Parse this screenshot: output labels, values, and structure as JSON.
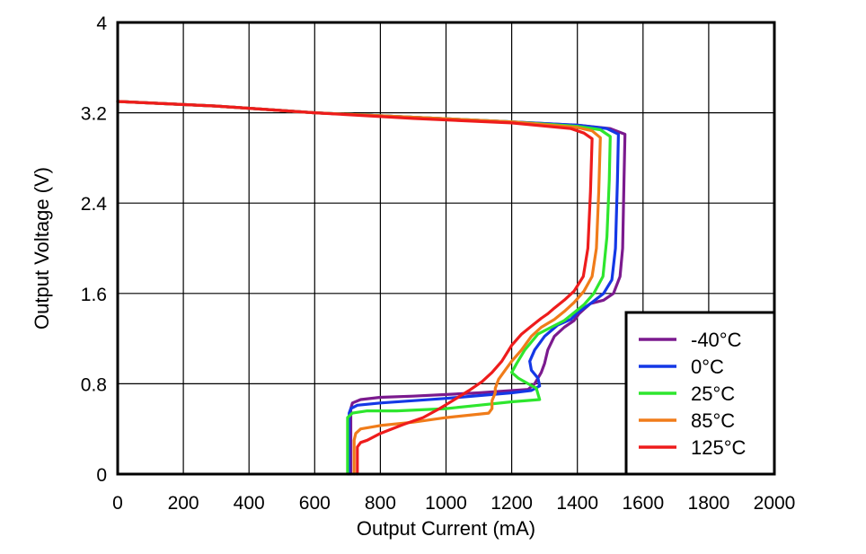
{
  "chart_data": {
    "type": "line",
    "title": "",
    "xlabel": "Output Current (mA)",
    "ylabel": "Output Voltage (V)",
    "xlim": [
      0,
      2000
    ],
    "ylim": [
      0,
      4
    ],
    "xticks": [
      0,
      200,
      400,
      600,
      800,
      1000,
      1200,
      1400,
      1600,
      1800,
      2000
    ],
    "xtick_labels": [
      "0",
      "200",
      "400",
      "600",
      "800",
      "1000",
      "1200",
      "1400",
      "1600",
      "1800",
      "2000"
    ],
    "yticks": [
      0,
      0.8,
      1.6,
      2.4,
      3.2,
      4
    ],
    "ytick_labels": [
      "0",
      "0.8",
      "1.6",
      "2.4",
      "3.2",
      "4"
    ],
    "grid": true,
    "legend_position": "bottom-right",
    "series": [
      {
        "name": "-40°C",
        "color": "#7b1a8e",
        "points": [
          [
            0,
            3.3
          ],
          [
            300,
            3.26
          ],
          [
            600,
            3.2
          ],
          [
            900,
            3.16
          ],
          [
            1200,
            3.12
          ],
          [
            1400,
            3.09
          ],
          [
            1500,
            3.06
          ],
          [
            1545,
            3.01
          ],
          [
            1542,
            2.6
          ],
          [
            1538,
            2.0
          ],
          [
            1530,
            1.75
          ],
          [
            1510,
            1.6
          ],
          [
            1480,
            1.54
          ],
          [
            1440,
            1.51
          ],
          [
            1420,
            1.46
          ],
          [
            1405,
            1.42
          ],
          [
            1390,
            1.36
          ],
          [
            1360,
            1.3
          ],
          [
            1330,
            1.22
          ],
          [
            1310,
            1.1
          ],
          [
            1300,
            0.98
          ],
          [
            1290,
            0.9
          ],
          [
            1270,
            0.8
          ],
          [
            1250,
            0.75
          ],
          [
            1100,
            0.72
          ],
          [
            900,
            0.69
          ],
          [
            800,
            0.68
          ],
          [
            740,
            0.66
          ],
          [
            715,
            0.63
          ],
          [
            710,
            0.58
          ],
          [
            710,
            0.4
          ],
          [
            710,
            0.2
          ],
          [
            710,
            0.0
          ]
        ]
      },
      {
        "name": "0°C",
        "color": "#1438e6",
        "points": [
          [
            0,
            3.3
          ],
          [
            300,
            3.26
          ],
          [
            600,
            3.2
          ],
          [
            900,
            3.16
          ],
          [
            1200,
            3.12
          ],
          [
            1400,
            3.09
          ],
          [
            1490,
            3.06
          ],
          [
            1525,
            3.01
          ],
          [
            1522,
            2.6
          ],
          [
            1516,
            2.0
          ],
          [
            1505,
            1.72
          ],
          [
            1480,
            1.6
          ],
          [
            1440,
            1.51
          ],
          [
            1400,
            1.43
          ],
          [
            1380,
            1.37
          ],
          [
            1340,
            1.32
          ],
          [
            1300,
            1.22
          ],
          [
            1270,
            1.1
          ],
          [
            1255,
            1.0
          ],
          [
            1260,
            0.92
          ],
          [
            1280,
            0.85
          ],
          [
            1285,
            0.78
          ],
          [
            1260,
            0.74
          ],
          [
            1200,
            0.72
          ],
          [
            1000,
            0.67
          ],
          [
            800,
            0.63
          ],
          [
            730,
            0.61
          ],
          [
            710,
            0.58
          ],
          [
            705,
            0.54
          ],
          [
            705,
            0.3
          ],
          [
            705,
            0.0
          ]
        ]
      },
      {
        "name": "25°C",
        "color": "#2ee62e",
        "points": [
          [
            0,
            3.3
          ],
          [
            300,
            3.26
          ],
          [
            600,
            3.2
          ],
          [
            900,
            3.16
          ],
          [
            1200,
            3.12
          ],
          [
            1400,
            3.08
          ],
          [
            1470,
            3.05
          ],
          [
            1500,
            2.99
          ],
          [
            1497,
            2.6
          ],
          [
            1490,
            2.1
          ],
          [
            1478,
            1.75
          ],
          [
            1450,
            1.6
          ],
          [
            1420,
            1.5
          ],
          [
            1390,
            1.43
          ],
          [
            1360,
            1.36
          ],
          [
            1320,
            1.3
          ],
          [
            1280,
            1.24
          ],
          [
            1240,
            1.1
          ],
          [
            1215,
            0.98
          ],
          [
            1200,
            0.9
          ],
          [
            1220,
            0.85
          ],
          [
            1250,
            0.8
          ],
          [
            1275,
            0.76
          ],
          [
            1285,
            0.66
          ],
          [
            1200,
            0.64
          ],
          [
            1100,
            0.61
          ],
          [
            1000,
            0.58
          ],
          [
            850,
            0.56
          ],
          [
            760,
            0.56
          ],
          [
            715,
            0.54
          ],
          [
            700,
            0.5
          ],
          [
            700,
            0.3
          ],
          [
            700,
            0.0
          ]
        ]
      },
      {
        "name": "85°C",
        "color": "#f07c1a",
        "points": [
          [
            0,
            3.3
          ],
          [
            300,
            3.26
          ],
          [
            600,
            3.2
          ],
          [
            900,
            3.16
          ],
          [
            1200,
            3.12
          ],
          [
            1400,
            3.07
          ],
          [
            1445,
            3.04
          ],
          [
            1470,
            2.98
          ],
          [
            1465,
            2.5
          ],
          [
            1458,
            2.0
          ],
          [
            1445,
            1.75
          ],
          [
            1420,
            1.62
          ],
          [
            1390,
            1.52
          ],
          [
            1360,
            1.44
          ],
          [
            1330,
            1.37
          ],
          [
            1290,
            1.3
          ],
          [
            1260,
            1.22
          ],
          [
            1230,
            1.1
          ],
          [
            1200,
            1.0
          ],
          [
            1180,
            0.92
          ],
          [
            1160,
            0.84
          ],
          [
            1150,
            0.76
          ],
          [
            1150,
            0.72
          ],
          [
            1140,
            0.65
          ],
          [
            1140,
            0.58
          ],
          [
            1130,
            0.54
          ],
          [
            1000,
            0.5
          ],
          [
            900,
            0.46
          ],
          [
            800,
            0.43
          ],
          [
            740,
            0.4
          ],
          [
            725,
            0.36
          ],
          [
            720,
            0.3
          ],
          [
            720,
            0.1
          ],
          [
            720,
            0.0
          ]
        ]
      },
      {
        "name": "125°C",
        "color": "#ee1c1c",
        "points": [
          [
            0,
            3.3
          ],
          [
            300,
            3.26
          ],
          [
            600,
            3.2
          ],
          [
            900,
            3.15
          ],
          [
            1200,
            3.11
          ],
          [
            1380,
            3.06
          ],
          [
            1420,
            3.02
          ],
          [
            1445,
            2.97
          ],
          [
            1440,
            2.5
          ],
          [
            1432,
            2.0
          ],
          [
            1418,
            1.75
          ],
          [
            1390,
            1.62
          ],
          [
            1360,
            1.54
          ],
          [
            1330,
            1.47
          ],
          [
            1310,
            1.42
          ],
          [
            1290,
            1.38
          ],
          [
            1260,
            1.31
          ],
          [
            1230,
            1.24
          ],
          [
            1200,
            1.14
          ],
          [
            1170,
            1.0
          ],
          [
            1140,
            0.9
          ],
          [
            1110,
            0.82
          ],
          [
            1070,
            0.74
          ],
          [
            1020,
            0.65
          ],
          [
            980,
            0.58
          ],
          [
            930,
            0.5
          ],
          [
            870,
            0.44
          ],
          [
            800,
            0.36
          ],
          [
            760,
            0.3
          ],
          [
            740,
            0.28
          ],
          [
            730,
            0.24
          ],
          [
            730,
            0.1
          ],
          [
            730,
            0.0
          ]
        ]
      }
    ]
  }
}
